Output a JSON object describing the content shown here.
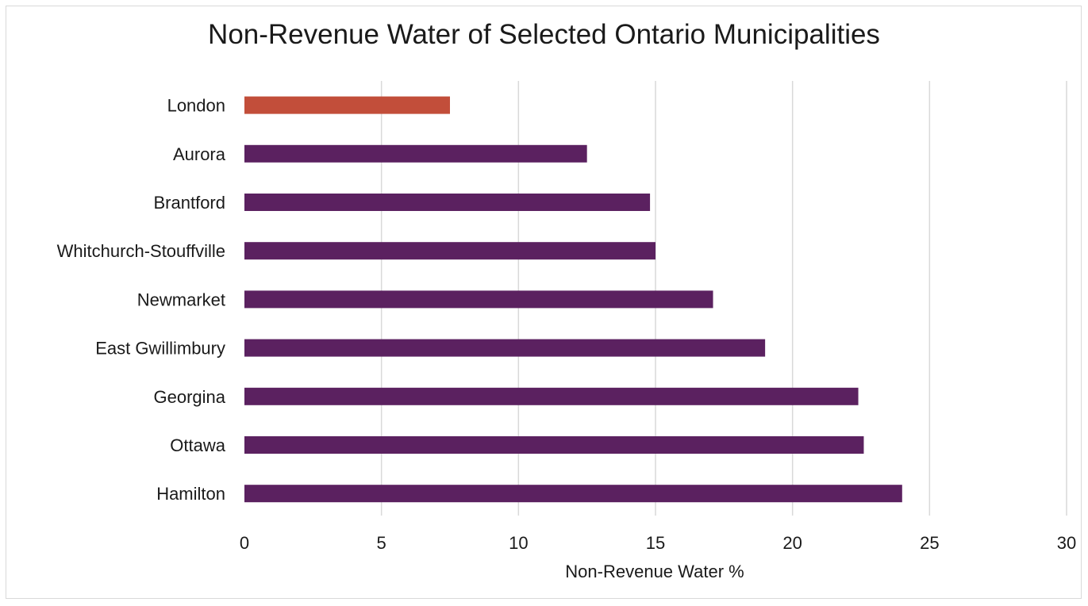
{
  "chart_data": {
    "type": "bar",
    "orientation": "horizontal",
    "title": "Non-Revenue Water of Selected Ontario Municipalities",
    "xlabel": "Non-Revenue Water %",
    "ylabel": "",
    "categories": [
      "London",
      "Aurora",
      "Brantford",
      "Whitchurch-Stouffville",
      "Newmarket",
      "East Gwillimbury",
      "Georgina",
      "Ottawa",
      "Hamilton"
    ],
    "values": [
      7.5,
      12.5,
      14.8,
      15.0,
      17.1,
      19.0,
      22.4,
      22.6,
      24.0
    ],
    "highlight_category": "London",
    "xlim": [
      0,
      30
    ],
    "xticks": [
      "0",
      "5",
      "10",
      "15",
      "20",
      "25",
      "30"
    ],
    "grid": "vertical",
    "legend": "none",
    "colors": {
      "bar": "#5b2160",
      "highlight": "#c24e3a",
      "grid": "#d9d9d9"
    }
  }
}
